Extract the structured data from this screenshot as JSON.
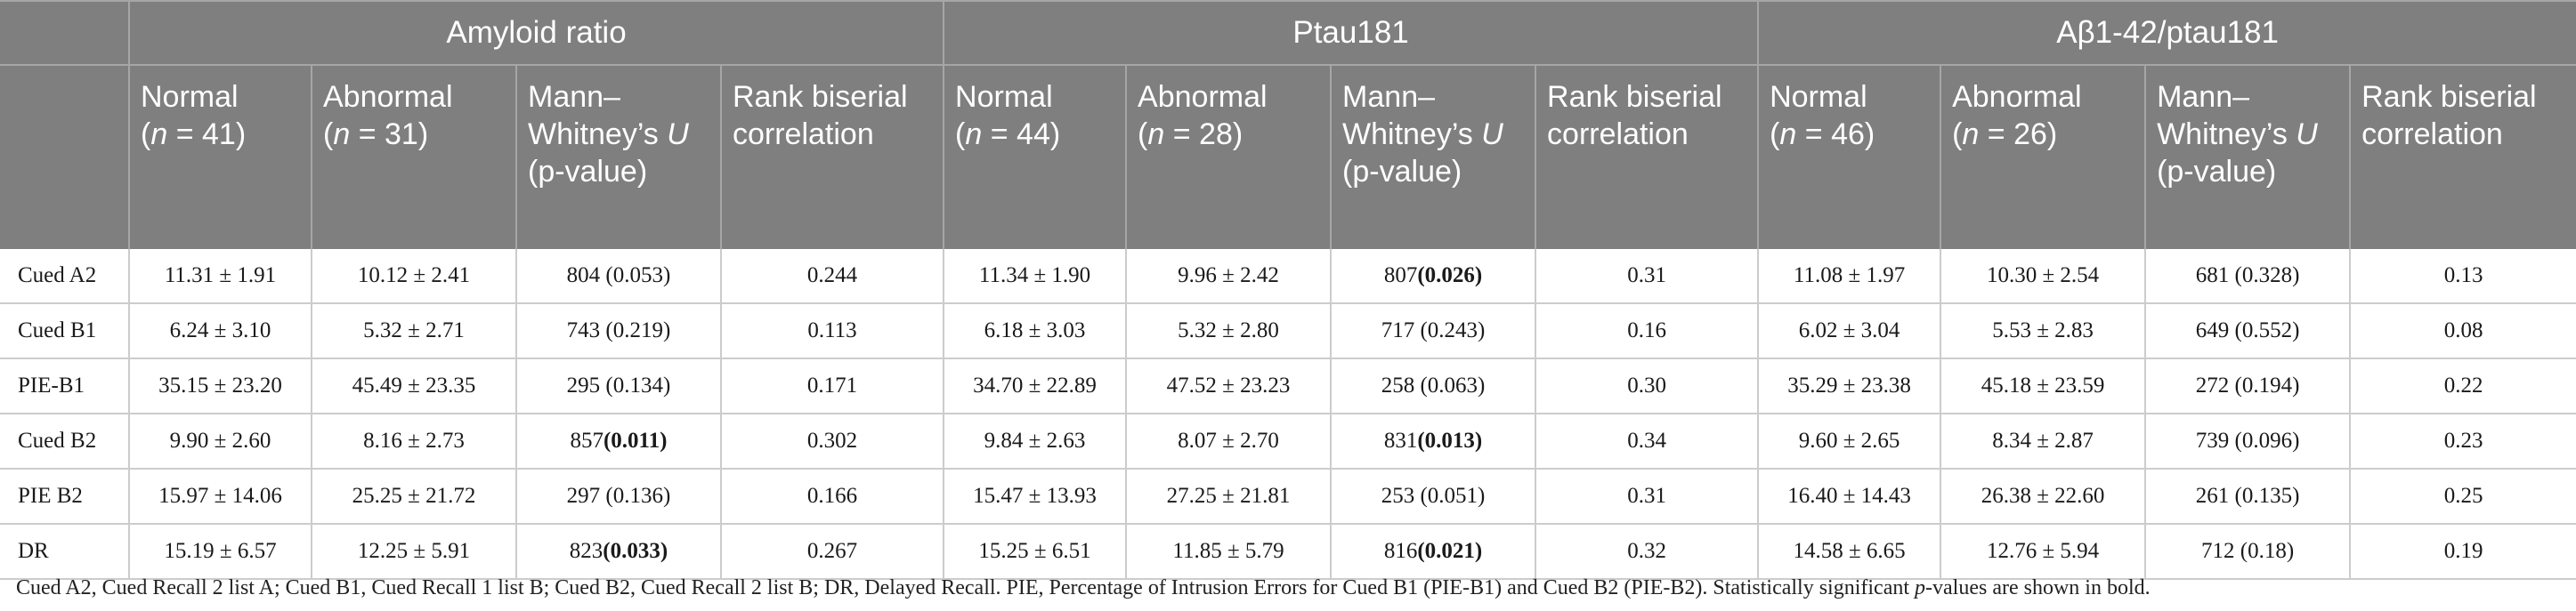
{
  "groups": [
    "Amyloid ratio",
    "Ptau181",
    "Aβ1-42/ptau181"
  ],
  "subheaders": [
    {
      "pre": "Normal",
      "ital": "n",
      "post": " = 41)"
    },
    {
      "pre": "Abnormal",
      "ital": "n",
      "post": " = 31)"
    },
    {
      "pre": "Mann–Whitney’s",
      "ital": "U",
      "post": " (p-value)"
    },
    {
      "pre": "Rank biserial correlation",
      "ital": "",
      "post": ""
    },
    {
      "pre": "Normal",
      "ital": "n",
      "post": " = 44)"
    },
    {
      "pre": "Abnormal",
      "ital": "n",
      "post": " = 28)"
    },
    {
      "pre": "Mann–Whitney’s",
      "ital": "U",
      "post": " (p-value)"
    },
    {
      "pre": "Rank biserial correlation",
      "ital": "",
      "post": ""
    },
    {
      "pre": "Normal",
      "ital": "n",
      "post": " = 46)"
    },
    {
      "pre": "Abnormal",
      "ital": "n",
      "post": " = 26)"
    },
    {
      "pre": "Mann–Whitney’s",
      "ital": "U",
      "post": " (p-value)"
    },
    {
      "pre": "Rank biserial correlation",
      "ital": "",
      "post": ""
    }
  ],
  "rows": [
    {
      "label": "Cued A2",
      "cells": [
        {
          "text": "11.31 ± 1.91"
        },
        {
          "text": "10.12 ± 2.41"
        },
        {
          "u": "804",
          "p": "(0.053)",
          "bold": false
        },
        {
          "text": "0.244"
        },
        {
          "text": "11.34 ± 1.90"
        },
        {
          "text": "9.96 ± 2.42"
        },
        {
          "u": "807",
          "p": "(0.026)",
          "bold": true
        },
        {
          "text": "0.31"
        },
        {
          "text": "11.08 ± 1.97"
        },
        {
          "text": "10.30 ± 2.54"
        },
        {
          "u": "681",
          "p": "(0.328)",
          "bold": false
        },
        {
          "text": "0.13"
        }
      ]
    },
    {
      "label": "Cued B1",
      "cells": [
        {
          "text": "6.24 ± 3.10"
        },
        {
          "text": "5.32 ± 2.71"
        },
        {
          "u": "743",
          "p": "(0.219)",
          "bold": false
        },
        {
          "text": "0.113"
        },
        {
          "text": "6.18 ± 3.03"
        },
        {
          "text": "5.32 ± 2.80"
        },
        {
          "u": "717",
          "p": "(0.243)",
          "bold": false
        },
        {
          "text": "0.16"
        },
        {
          "text": "6.02 ± 3.04"
        },
        {
          "text": "5.53 ± 2.83"
        },
        {
          "u": "649",
          "p": "(0.552)",
          "bold": false
        },
        {
          "text": "0.08"
        }
      ]
    },
    {
      "label": "PIE-B1",
      "cells": [
        {
          "text": "35.15 ± 23.20"
        },
        {
          "text": "45.49 ± 23.35"
        },
        {
          "u": "295",
          "p": "(0.134)",
          "bold": false
        },
        {
          "text": "0.171"
        },
        {
          "text": "34.70 ± 22.89"
        },
        {
          "text": "47.52 ± 23.23"
        },
        {
          "u": "258",
          "p": "(0.063)",
          "bold": false
        },
        {
          "text": "0.30"
        },
        {
          "text": "35.29 ± 23.38"
        },
        {
          "text": "45.18 ± 23.59"
        },
        {
          "u": "272",
          "p": "(0.194)",
          "bold": false
        },
        {
          "text": "0.22"
        }
      ]
    },
    {
      "label": "Cued B2",
      "cells": [
        {
          "text": "9.90 ± 2.60"
        },
        {
          "text": "8.16 ± 2.73"
        },
        {
          "u": "857",
          "p": "(0.011)",
          "bold": true
        },
        {
          "text": "0.302"
        },
        {
          "text": "9.84 ± 2.63"
        },
        {
          "text": "8.07 ± 2.70"
        },
        {
          "u": "831",
          "p": "(0.013)",
          "bold": true
        },
        {
          "text": "0.34"
        },
        {
          "text": "9.60 ± 2.65"
        },
        {
          "text": "8.34 ± 2.87"
        },
        {
          "u": "739",
          "p": "(0.096)",
          "bold": false
        },
        {
          "text": "0.23"
        }
      ]
    },
    {
      "label": "PIE B2",
      "cells": [
        {
          "text": "15.97 ± 14.06"
        },
        {
          "text": "25.25 ± 21.72"
        },
        {
          "u": "297",
          "p": "(0.136)",
          "bold": false
        },
        {
          "text": "0.166"
        },
        {
          "text": "15.47 ± 13.93"
        },
        {
          "text": "27.25 ± 21.81"
        },
        {
          "u": "253",
          "p": "(0.051)",
          "bold": false
        },
        {
          "text": "0.31"
        },
        {
          "text": "16.40 ± 14.43"
        },
        {
          "text": "26.38 ± 22.60"
        },
        {
          "u": "261",
          "p": "(0.135)",
          "bold": false
        },
        {
          "text": "0.25"
        }
      ]
    },
    {
      "label": "DR",
      "cells": [
        {
          "text": "15.19 ± 6.57"
        },
        {
          "text": "12.25 ± 5.91"
        },
        {
          "u": "823",
          "p": "(0.033)",
          "bold": true
        },
        {
          "text": "0.267"
        },
        {
          "text": "15.25 ± 6.51"
        },
        {
          "text": "11.85 ± 5.79"
        },
        {
          "u": "816",
          "p": "(0.021)",
          "bold": true
        },
        {
          "text": "0.32"
        },
        {
          "text": "14.58 ± 6.65"
        },
        {
          "text": "12.76 ± 5.94"
        },
        {
          "u": "712",
          "p": "(0.18)",
          "bold": false
        },
        {
          "text": "0.19"
        }
      ]
    }
  ],
  "footnote": {
    "main": "Cued A2, Cued Recall 2 list A; Cued B1, Cued Recall 1 list B; Cued B2, Cued Recall 2 list B; DR, Delayed Recall. PIE, Percentage of Intrusion Errors for Cued B1 (PIE-B1) and Cued B2 (PIE-B2). Statistically significant ",
    "ital": "p",
    "end": "-values are shown in bold."
  }
}
